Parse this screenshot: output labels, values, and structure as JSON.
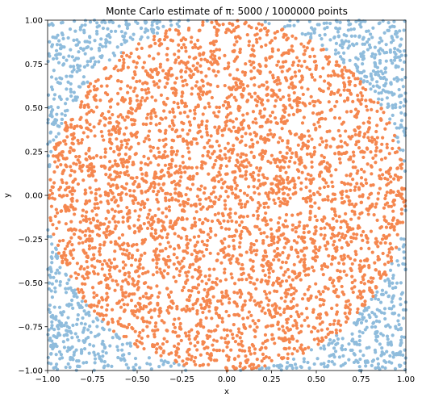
{
  "chart_data": {
    "type": "scatter",
    "title": "Monte Carlo estimate of π: 5000 / 1000000 points",
    "xlabel": "x",
    "ylabel": "y",
    "xlim": [
      -1.0,
      1.0
    ],
    "ylim": [
      -1.0,
      1.0
    ],
    "x_ticks": [
      "−1.00",
      "−0.75",
      "−0.50",
      "−0.25",
      "0.00",
      "0.25",
      "0.50",
      "0.75",
      "1.00"
    ],
    "y_ticks": [
      "−1.00",
      "−0.75",
      "−0.50",
      "−0.25",
      "0.00",
      "0.25",
      "0.50",
      "0.75",
      "1.00"
    ],
    "grid": false,
    "series": [
      {
        "color": "#8fbcdc",
        "points_shown": 1073,
        "region": "outside unit circle"
      },
      {
        "color": "#f5874f",
        "points_shown": 3927,
        "region": "inside unit circle"
      }
    ],
    "total_points_shown": 5000
  }
}
